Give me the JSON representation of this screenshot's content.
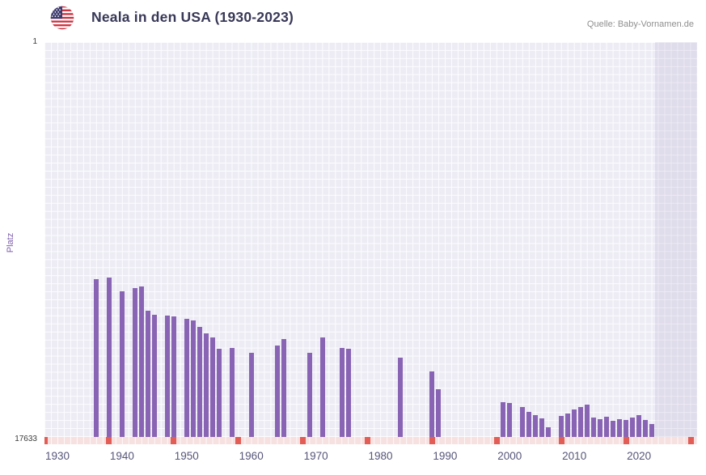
{
  "header": {
    "title": "Neala in den USA (1930-2023)",
    "source": "Quelle: Baby-Vornamen.de"
  },
  "chart": {
    "ylabel": "Platz",
    "y_top_label": "1",
    "y_bottom_label": "17633"
  },
  "colors": {
    "bar": "#8a64b4",
    "plot_background": "#edecf5",
    "grid_line": "#ffffff",
    "recent_band": "rgba(124,110,165,0.12)",
    "missing_year_strip": "#f7e0e0",
    "decade_mark": "#e25d55",
    "axis_tick_label": "#55557a",
    "y_axis_title": "#7d5fad",
    "title_text": "#383858",
    "source_text": "#8f8f8f"
  },
  "chart_data": {
    "type": "bar",
    "title": "Neala in den USA (1930-2023)",
    "source": "Quelle: Baby-Vornamen.de",
    "xlabel": "",
    "ylabel": "Platz",
    "y_axis": {
      "min": 1,
      "max": 17633,
      "top_label": "1",
      "bottom_label": "17633",
      "orientation": "rank 1 at top, bars grow upward from bottom (lower rank = taller bar)"
    },
    "x_axis": {
      "range": [
        1928,
        2029
      ],
      "tick_years": [
        1930,
        1940,
        1950,
        1960,
        1970,
        1980,
        1990,
        2000,
        2010,
        2020
      ]
    },
    "grid": true,
    "legend": "none",
    "annotations": {
      "recent_band_start_year": 2022.5,
      "missing_year_strip": "pale pink strip along bottom axis for years without a ranking",
      "decade_tick_mark_years": [
        1928,
        1938,
        1948,
        1958,
        1968,
        1978,
        1988,
        1998,
        2008,
        2018,
        2028
      ]
    },
    "series": [
      {
        "name": "Neala",
        "points": [
          {
            "year": 1936,
            "rank": 10590
          },
          {
            "year": 1938,
            "rank": 10510
          },
          {
            "year": 1940,
            "rank": 11130
          },
          {
            "year": 1942,
            "rank": 10980
          },
          {
            "year": 1943,
            "rank": 10910
          },
          {
            "year": 1944,
            "rank": 12000
          },
          {
            "year": 1945,
            "rank": 12180
          },
          {
            "year": 1947,
            "rank": 12210
          },
          {
            "year": 1948,
            "rank": 12250
          },
          {
            "year": 1950,
            "rank": 12360
          },
          {
            "year": 1951,
            "rank": 12430
          },
          {
            "year": 1952,
            "rank": 12720
          },
          {
            "year": 1953,
            "rank": 13010
          },
          {
            "year": 1954,
            "rank": 13190
          },
          {
            "year": 1955,
            "rank": 13690
          },
          {
            "year": 1957,
            "rank": 13660
          },
          {
            "year": 1960,
            "rank": 13880
          },
          {
            "year": 1964,
            "rank": 13550
          },
          {
            "year": 1965,
            "rank": 13260
          },
          {
            "year": 1969,
            "rank": 13880
          },
          {
            "year": 1971,
            "rank": 13190
          },
          {
            "year": 1974,
            "rank": 13660
          },
          {
            "year": 1975,
            "rank": 13690
          },
          {
            "year": 1983,
            "rank": 14090
          },
          {
            "year": 1988,
            "rank": 14710
          },
          {
            "year": 1989,
            "rank": 15500
          },
          {
            "year": 1999,
            "rank": 16080
          },
          {
            "year": 2000,
            "rank": 16120
          },
          {
            "year": 2002,
            "rank": 16300
          },
          {
            "year": 2003,
            "rank": 16510
          },
          {
            "year": 2004,
            "rank": 16660
          },
          {
            "year": 2005,
            "rank": 16800
          },
          {
            "year": 2006,
            "rank": 17200
          },
          {
            "year": 2008,
            "rank": 16690
          },
          {
            "year": 2009,
            "rank": 16590
          },
          {
            "year": 2010,
            "rank": 16400
          },
          {
            "year": 2011,
            "rank": 16300
          },
          {
            "year": 2012,
            "rank": 16190
          },
          {
            "year": 2013,
            "rank": 16770
          },
          {
            "year": 2014,
            "rank": 16840
          },
          {
            "year": 2015,
            "rank": 16730
          },
          {
            "year": 2016,
            "rank": 16910
          },
          {
            "year": 2017,
            "rank": 16840
          },
          {
            "year": 2018,
            "rank": 16880
          },
          {
            "year": 2019,
            "rank": 16770
          },
          {
            "year": 2020,
            "rank": 16660
          },
          {
            "year": 2021,
            "rank": 16880
          },
          {
            "year": 2022,
            "rank": 17060
          }
        ]
      }
    ]
  }
}
